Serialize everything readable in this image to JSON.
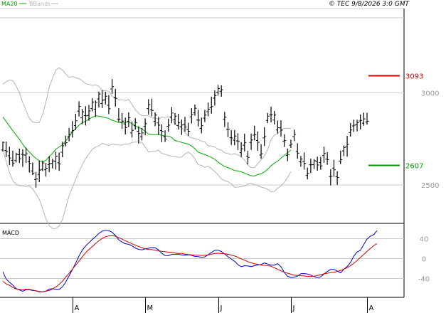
{
  "chart_data": [
    {
      "type": "ohlc",
      "legend": [
        {
          "label": "MA20",
          "color": "#00aa00"
        },
        {
          "label": "BBands",
          "color": "#b4b4b4"
        }
      ],
      "copyright": "© TEC 9/8/2026 3:0 GMT",
      "ylim": [
        2300,
        3450
      ],
      "yticks": [
        {
          "value": 2500,
          "label": "2500"
        },
        {
          "value": 3000,
          "label": "3000"
        }
      ],
      "xticks": [
        {
          "index": 21,
          "label": "A"
        },
        {
          "index": 43,
          "label": "M"
        },
        {
          "index": 65,
          "label": "J"
        },
        {
          "index": 87,
          "label": "J"
        },
        {
          "index": 110,
          "label": "A"
        }
      ],
      "markers": [
        {
          "value": 3093,
          "label": "3093",
          "color": "#cc0000"
        },
        {
          "value": 2607,
          "label": "2607",
          "color": "#009900"
        }
      ],
      "ma20": [
        2870,
        2845,
        2820,
        2795,
        2772,
        2748,
        2722,
        2698,
        2680,
        2661,
        2645,
        2632,
        2627,
        2634,
        2655,
        2672,
        2694,
        2707,
        2719,
        2740,
        2762,
        2788,
        2807,
        2825,
        2838,
        2847,
        2858,
        2868,
        2875,
        2874,
        2870,
        2866,
        2861,
        2852,
        2846,
        2840,
        2840,
        2840,
        2843,
        2834,
        2821,
        2812,
        2805,
        2792,
        2777,
        2774,
        2774,
        2774,
        2770,
        2766,
        2766,
        2758,
        2742,
        2737,
        2732,
        2727,
        2722,
        2712,
        2697,
        2679,
        2672,
        2665,
        2658,
        2650,
        2640,
        2625,
        2612,
        2600,
        2595,
        2587,
        2579,
        2577,
        2572,
        2565,
        2557,
        2551,
        2549,
        2557,
        2562,
        2571,
        2586,
        2605,
        2619,
        2630,
        2647,
        2661,
        2675,
        2690
      ],
      "bb_upper": [
        3048,
        3060,
        3070,
        3067,
        3039,
        3000,
        2949,
        2905,
        2863,
        2843,
        2838,
        2840,
        2882,
        2951,
        3030,
        3079,
        3124,
        3136,
        3124,
        3103,
        3083,
        3089,
        3083,
        3077,
        3066,
        3050,
        3046,
        3041,
        3044,
        3036,
        3014,
        3012,
        3009,
        2982,
        2973,
        2963,
        2963,
        2958,
        2964,
        2938,
        2909,
        2890,
        2877,
        2876,
        2875,
        2866,
        2865,
        2857,
        2868,
        2866,
        2872,
        2860,
        2830,
        2822,
        2812,
        2786,
        2765,
        2757,
        2752,
        2748,
        2737,
        2734,
        2713,
        2711,
        2707,
        2694,
        2690,
        2675,
        2671,
        2666,
        2671,
        2664,
        2653,
        2636,
        2609,
        2594,
        2595,
        2617,
        2636,
        2658,
        2694,
        2746,
        2772,
        2778,
        2799,
        2808,
        2808,
        2808
      ],
      "bb_lower": [
        2692,
        2629,
        2570,
        2523,
        2505,
        2496,
        2496,
        2491,
        2497,
        2480,
        2452,
        2423,
        2372,
        2317,
        2280,
        2265,
        2264,
        2277,
        2314,
        2377,
        2441,
        2487,
        2531,
        2572,
        2610,
        2644,
        2669,
        2694,
        2706,
        2712,
        2726,
        2721,
        2714,
        2722,
        2719,
        2718,
        2717,
        2723,
        2722,
        2731,
        2733,
        2733,
        2732,
        2707,
        2679,
        2683,
        2682,
        2690,
        2672,
        2667,
        2661,
        2657,
        2654,
        2651,
        2652,
        2669,
        2679,
        2667,
        2642,
        2610,
        2607,
        2596,
        2603,
        2589,
        2574,
        2556,
        2534,
        2524,
        2518,
        2508,
        2487,
        2489,
        2491,
        2494,
        2506,
        2509,
        2503,
        2497,
        2489,
        2485,
        2478,
        2464,
        2466,
        2482,
        2495,
        2514,
        2542,
        2572
      ],
      "ohlc": [
        [
          2690,
          2736,
          2682,
          2732
        ],
        [
          2687,
          2736,
          2652,
          2682
        ],
        [
          2659,
          2708,
          2608,
          2647
        ],
        [
          2634,
          2687,
          2600,
          2619
        ],
        [
          2633,
          2675,
          2622,
          2667
        ],
        [
          2665,
          2698,
          2620,
          2643
        ],
        [
          2667,
          2694,
          2599,
          2664
        ],
        [
          2662,
          2703,
          2620,
          2670
        ],
        [
          2628,
          2657,
          2568,
          2618
        ],
        [
          2577,
          2622,
          2554,
          2565
        ],
        [
          2530,
          2571,
          2486,
          2533
        ],
        [
          2558,
          2633,
          2516,
          2581
        ],
        [
          2585,
          2633,
          2576,
          2620
        ],
        [
          2583,
          2620,
          2546,
          2591
        ],
        [
          2611,
          2657,
          2570,
          2616
        ],
        [
          2617,
          2643,
          2590,
          2631
        ],
        [
          2628,
          2681,
          2584,
          2657
        ],
        [
          2621,
          2677,
          2577,
          2615
        ],
        [
          2678,
          2735,
          2651,
          2713
        ],
        [
          2724,
          2768,
          2710,
          2730
        ],
        [
          2763,
          2810,
          2737,
          2775
        ],
        [
          2787,
          2847,
          2758,
          2796
        ],
        [
          2823,
          2887,
          2799,
          2849
        ],
        [
          2901,
          2955,
          2872,
          2927
        ],
        [
          2865,
          2913,
          2830,
          2897
        ],
        [
          2877,
          2928,
          2823,
          2876
        ],
        [
          2878,
          2934,
          2849,
          2902
        ],
        [
          2915,
          2971,
          2900,
          2950
        ],
        [
          2911,
          2959,
          2870,
          2948
        ],
        [
          2967,
          3007,
          2921,
          2994
        ],
        [
          2943,
          3015,
          2918,
          2960
        ],
        [
          2963,
          3006,
          2937,
          2982
        ],
        [
          2933,
          2989,
          2885,
          2914
        ],
        [
          3021,
          3075,
          2995,
          3034
        ],
        [
          2973,
          3022,
          2926,
          2971
        ],
        [
          2857,
          2917,
          2842,
          2857
        ],
        [
          2840,
          2891,
          2805,
          2847
        ],
        [
          2832,
          2866,
          2774,
          2812
        ],
        [
          2845,
          2895,
          2815,
          2866
        ],
        [
          2783,
          2845,
          2758,
          2797
        ],
        [
          2822,
          2863,
          2801,
          2839
        ],
        [
          2792,
          2819,
          2725,
          2780
        ],
        [
          2762,
          2810,
          2742,
          2783
        ],
        [
          2818,
          2862,
          2770,
          2833
        ],
        [
          2915,
          2966,
          2882,
          2936
        ],
        [
          2908,
          2969,
          2873,
          2905
        ],
        [
          2845,
          2894,
          2820,
          2880
        ],
        [
          2837,
          2869,
          2773,
          2825
        ],
        [
          2796,
          2829,
          2733,
          2791
        ],
        [
          2763,
          2797,
          2734,
          2750
        ],
        [
          2819,
          2860,
          2789,
          2825
        ],
        [
          2870,
          2923,
          2836,
          2891
        ],
        [
          2856,
          2891,
          2827,
          2874
        ],
        [
          2823,
          2887,
          2801,
          2838
        ],
        [
          2816,
          2856,
          2772,
          2826
        ],
        [
          2830,
          2870,
          2790,
          2815
        ],
        [
          2802,
          2838,
          2767,
          2792
        ],
        [
          2870,
          2917,
          2834,
          2884
        ],
        [
          2892,
          2937,
          2876,
          2917
        ],
        [
          2853,
          2908,
          2818,
          2852
        ],
        [
          2808,
          2866,
          2781,
          2822
        ],
        [
          2863,
          2908,
          2842,
          2880
        ],
        [
          2898,
          2948,
          2873,
          2912
        ],
        [
          2920,
          2980,
          2888,
          2926
        ],
        [
          2972,
          3014,
          2931,
          2986
        ],
        [
          3003,
          3043,
          2985,
          3023
        ],
        [
          3009,
          3041,
          2979,
          3017
        ],
        [
          2857,
          2897,
          2815,
          2868
        ],
        [
          2802,
          2841,
          2760,
          2804
        ],
        [
          2757,
          2798,
          2718,
          2756
        ],
        [
          2744,
          2799,
          2716,
          2766
        ],
        [
          2740,
          2781,
          2690,
          2737
        ],
        [
          2676,
          2733,
          2652,
          2697
        ],
        [
          2716,
          2779,
          2683,
          2731
        ],
        [
          2656,
          2686,
          2612,
          2650
        ],
        [
          2731,
          2780,
          2691,
          2745
        ],
        [
          2771,
          2822,
          2742,
          2773
        ],
        [
          2742,
          2791,
          2686,
          2732
        ],
        [
          2663,
          2722,
          2643,
          2670
        ],
        [
          2756,
          2814,
          2712,
          2763
        ],
        [
          2851,
          2891,
          2836,
          2874
        ],
        [
          2881,
          2925,
          2840,
          2882
        ],
        [
          2853,
          2902,
          2829,
          2880
        ],
        [
          2799,
          2850,
          2780,
          2811
        ],
        [
          2810,
          2852,
          2763,
          2798
        ],
        [
          2737,
          2776,
          2707,
          2741
        ],
        [
          2661,
          2698,
          2630,
          2665
        ],
        [
          2716,
          2746,
          2701,
          2722
        ],
        [
          2763,
          2801,
          2739,
          2776
        ],
        [
          2682,
          2727,
          2642,
          2673
        ],
        [
          2626,
          2658,
          2600,
          2641
        ],
        [
          2628,
          2677,
          2584,
          2618
        ],
        [
          2552,
          2595,
          2531,
          2563
        ],
        [
          2610,
          2643,
          2565,
          2610
        ],
        [
          2611,
          2641,
          2587,
          2632
        ],
        [
          2628,
          2654,
          2578,
          2609
        ],
        [
          2622,
          2653,
          2583,
          2604
        ],
        [
          2660,
          2708,
          2621,
          2671
        ],
        [
          2641,
          2679,
          2610,
          2638
        ],
        [
          2546,
          2586,
          2498,
          2548
        ],
        [
          2592,
          2637,
          2545,
          2583
        ],
        [
          2546,
          2575,
          2501,
          2541
        ],
        [
          2629,
          2687,
          2614,
          2638
        ],
        [
          2685,
          2715,
          2657,
          2704
        ],
        [
          2707,
          2767,
          2654,
          2721
        ],
        [
          2785,
          2837,
          2763,
          2799
        ],
        [
          2821,
          2855,
          2788,
          2825
        ],
        [
          2827,
          2855,
          2791,
          2838
        ],
        [
          2848,
          2883,
          2802,
          2851
        ],
        [
          2836,
          2893,
          2822,
          2859
        ],
        [
          2842,
          2892,
          2828,
          2846
        ]
      ]
    },
    {
      "type": "line",
      "title": "MACD",
      "ylim": [
        -75,
        65
      ],
      "yticks": [
        {
          "value": 40,
          "label": "40"
        },
        {
          "value": 0,
          "label": "0"
        },
        {
          "value": -40,
          "label": "-40"
        }
      ],
      "series": [
        {
          "color": "#0000cc",
          "values": [
            -26.3,
            -41.2,
            -47.6,
            -53.6,
            -60.2,
            -62.9,
            -65.5,
            -62.6,
            -62.5,
            -64.1,
            -64.9,
            -66.7,
            -66.6,
            -65.3,
            -61.4,
            -60.6,
            -61.5,
            -62.1,
            -56.5,
            -47.1,
            -34.7,
            -22.3,
            -9.0,
            5.3,
            16.8,
            25.4,
            31.8,
            38.4,
            44.0,
            50.5,
            55.0,
            56.8,
            56.3,
            52.8,
            46.4,
            37.9,
            33.2,
            29.9,
            28.7,
            25.7,
            21.2,
            18.6,
            17.6,
            19.4,
            20.7,
            22.1,
            21.8,
            17.6,
            10.6,
            6.2,
            5.9,
            8.5,
            8.6,
            9.0,
            7.3,
            6.8,
            7.7,
            6.5,
            4.3,
            3.8,
            2.7,
            3.5,
            7.7,
            12.5,
            16.4,
            16.8,
            14.1,
            9.1,
            3.8,
            -0.8,
            -5.4,
            -12.2,
            -16.4,
            -14.3,
            -14.8,
            -16.1,
            -14.3,
            -12.7,
            -12.0,
            -8.7,
            -11.0,
            -13.1,
            -13.1,
            -10.2,
            -16.3,
            -27.5,
            -35.6,
            -38.2,
            -37.3,
            -35.3,
            -30.3,
            -30.1,
            -30.8,
            -33.1,
            -36.2,
            -38.4,
            -36.5,
            -31.1,
            -25.8,
            -21.9,
            -21.7,
            -24.8,
            -28.7,
            -21.4,
            -15.8,
            -8.0,
            5.0,
            13.2,
            16.5,
            28.0,
            39.2,
            45.1,
            47.9,
            56.1
          ]
        },
        {
          "color": "#cc0000",
          "values": [
            -45.6,
            -50.7,
            -53.6,
            -58.1,
            -61.0,
            -61.7,
            -62.0,
            -61.4,
            -61.8,
            -63.1,
            -64.7,
            -66.0,
            -66.6,
            -65.3,
            -64.1,
            -61.2,
            -57.0,
            -51.9,
            -45.6,
            -37.1,
            -29.7,
            -21.4,
            -13.1,
            -5.2,
            3.4,
            11.7,
            18.4,
            24.0,
            30.2,
            35.7,
            40.3,
            43.9,
            45.4,
            46.1,
            44.8,
            42.4,
            39.0,
            35.8,
            32.7,
            29.9,
            26.8,
            24.4,
            21.8,
            19.5,
            18.5,
            18.0,
            16.7,
            15.6,
            14.7,
            14.0,
            13.0,
            12.4,
            11.0,
            10.4,
            10.5,
            9.0,
            8.1,
            7.4,
            7.0,
            6.9,
            6.3,
            6.6,
            7.1,
            8.7,
            10.1,
            10.7,
            10.2,
            9.7,
            8.7,
            7.1,
            5.1,
            2.7,
            -0.6,
            -3.2,
            -6.2,
            -8.4,
            -10.4,
            -11.6,
            -12.8,
            -13.7,
            -14.0,
            -15.5,
            -18.3,
            -21.7,
            -24.6,
            -27.6,
            -29.3,
            -31.3,
            -33.4,
            -34.0,
            -34.5,
            -34.8,
            -35.7,
            -35.8,
            -35.3,
            -33.9,
            -32.3,
            -30.6,
            -29.5,
            -28.2,
            -27.3,
            -25.9,
            -23.8,
            -21.2,
            -18.3,
            -14.3,
            -9.3,
            -4.0,
            2.3,
            8.2,
            14.5,
            20.3,
            25.8,
            30.2
          ]
        }
      ]
    }
  ]
}
